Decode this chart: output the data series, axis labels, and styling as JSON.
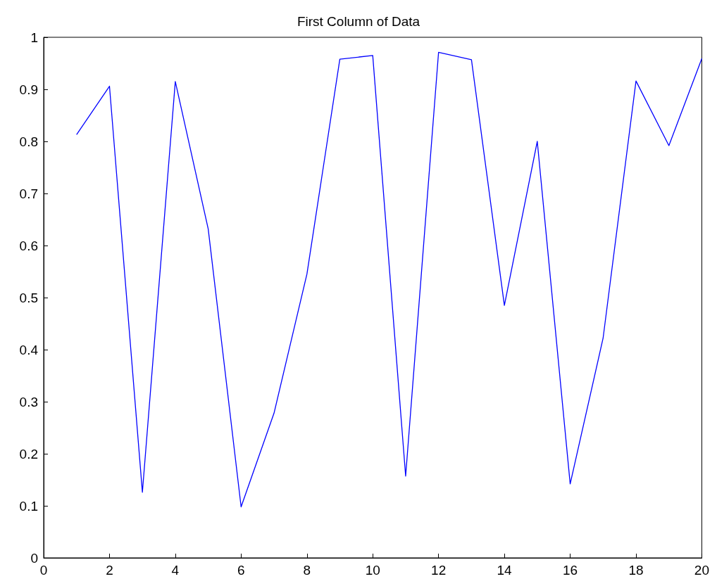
{
  "chart_data": {
    "type": "line",
    "title": "First Column of Data",
    "x": [
      1,
      2,
      3,
      4,
      5,
      6,
      7,
      8,
      9,
      10,
      11,
      12,
      13,
      14,
      15,
      16,
      17,
      18,
      19,
      20
    ],
    "series": [
      {
        "color": "#0000ff",
        "values": [
          0.813,
          0.906,
          0.126,
          0.915,
          0.632,
          0.098,
          0.278,
          0.545,
          0.958,
          0.965,
          0.157,
          0.971,
          0.957,
          0.485,
          0.8,
          0.142,
          0.422,
          0.916,
          0.792,
          0.959
        ]
      }
    ],
    "xlim": [
      0,
      20
    ],
    "xticks": [
      0,
      2,
      4,
      6,
      8,
      10,
      12,
      14,
      16,
      18,
      20
    ],
    "ylim": [
      0,
      1
    ],
    "yticks": [
      0,
      0.1,
      0.2,
      0.3,
      0.4,
      0.5,
      0.6,
      0.7,
      0.8,
      0.9,
      1
    ],
    "grid": false,
    "marker": "none",
    "line_style": "solid"
  }
}
